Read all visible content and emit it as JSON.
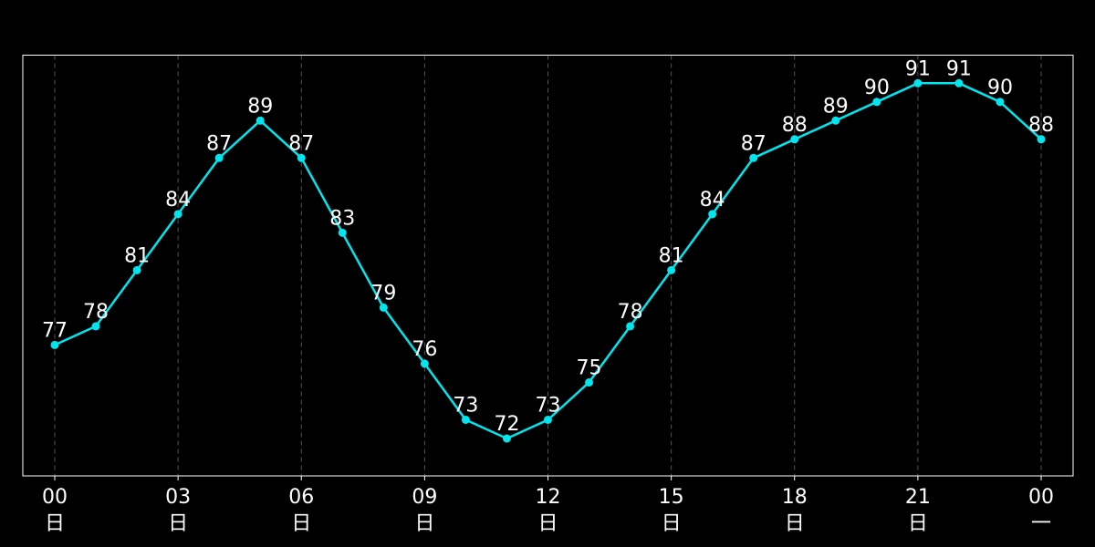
{
  "chart_data": {
    "type": "line",
    "series": [
      {
        "values": [
          77,
          78,
          81,
          84,
          87,
          89,
          87,
          83,
          79,
          76,
          73,
          72,
          73,
          75,
          78,
          81,
          84,
          87,
          88,
          89,
          90,
          91,
          91,
          90,
          88
        ]
      }
    ],
    "x": [
      0,
      1,
      2,
      3,
      4,
      5,
      6,
      7,
      8,
      9,
      10,
      11,
      12,
      13,
      14,
      15,
      16,
      17,
      18,
      19,
      20,
      21,
      22,
      23,
      24
    ],
    "x_ticks": [
      {
        "at": 0,
        "time": "00",
        "day": "日"
      },
      {
        "at": 3,
        "time": "03",
        "day": "日"
      },
      {
        "at": 6,
        "time": "06",
        "day": "日"
      },
      {
        "at": 9,
        "time": "09",
        "day": "日"
      },
      {
        "at": 12,
        "time": "12",
        "day": "日"
      },
      {
        "at": 15,
        "time": "15",
        "day": "日"
      },
      {
        "at": 18,
        "time": "18",
        "day": "日"
      },
      {
        "at": 21,
        "time": "21",
        "day": "日"
      },
      {
        "at": 24,
        "time": "00",
        "day": "一"
      }
    ],
    "title": "",
    "xlabel": "",
    "ylabel": "",
    "xlim": [
      0,
      24
    ],
    "ylim": [
      70,
      92.5
    ],
    "y_ticks_shown": false,
    "data_labels": true,
    "markers": true,
    "grid": "vertical-dashed",
    "line_color": "#00e5ee",
    "marker_color": "#00e5ee",
    "background_color": "#000000",
    "frame_color": "#ffffff",
    "grid_color": "#555555",
    "text_color": "#ffffff"
  }
}
